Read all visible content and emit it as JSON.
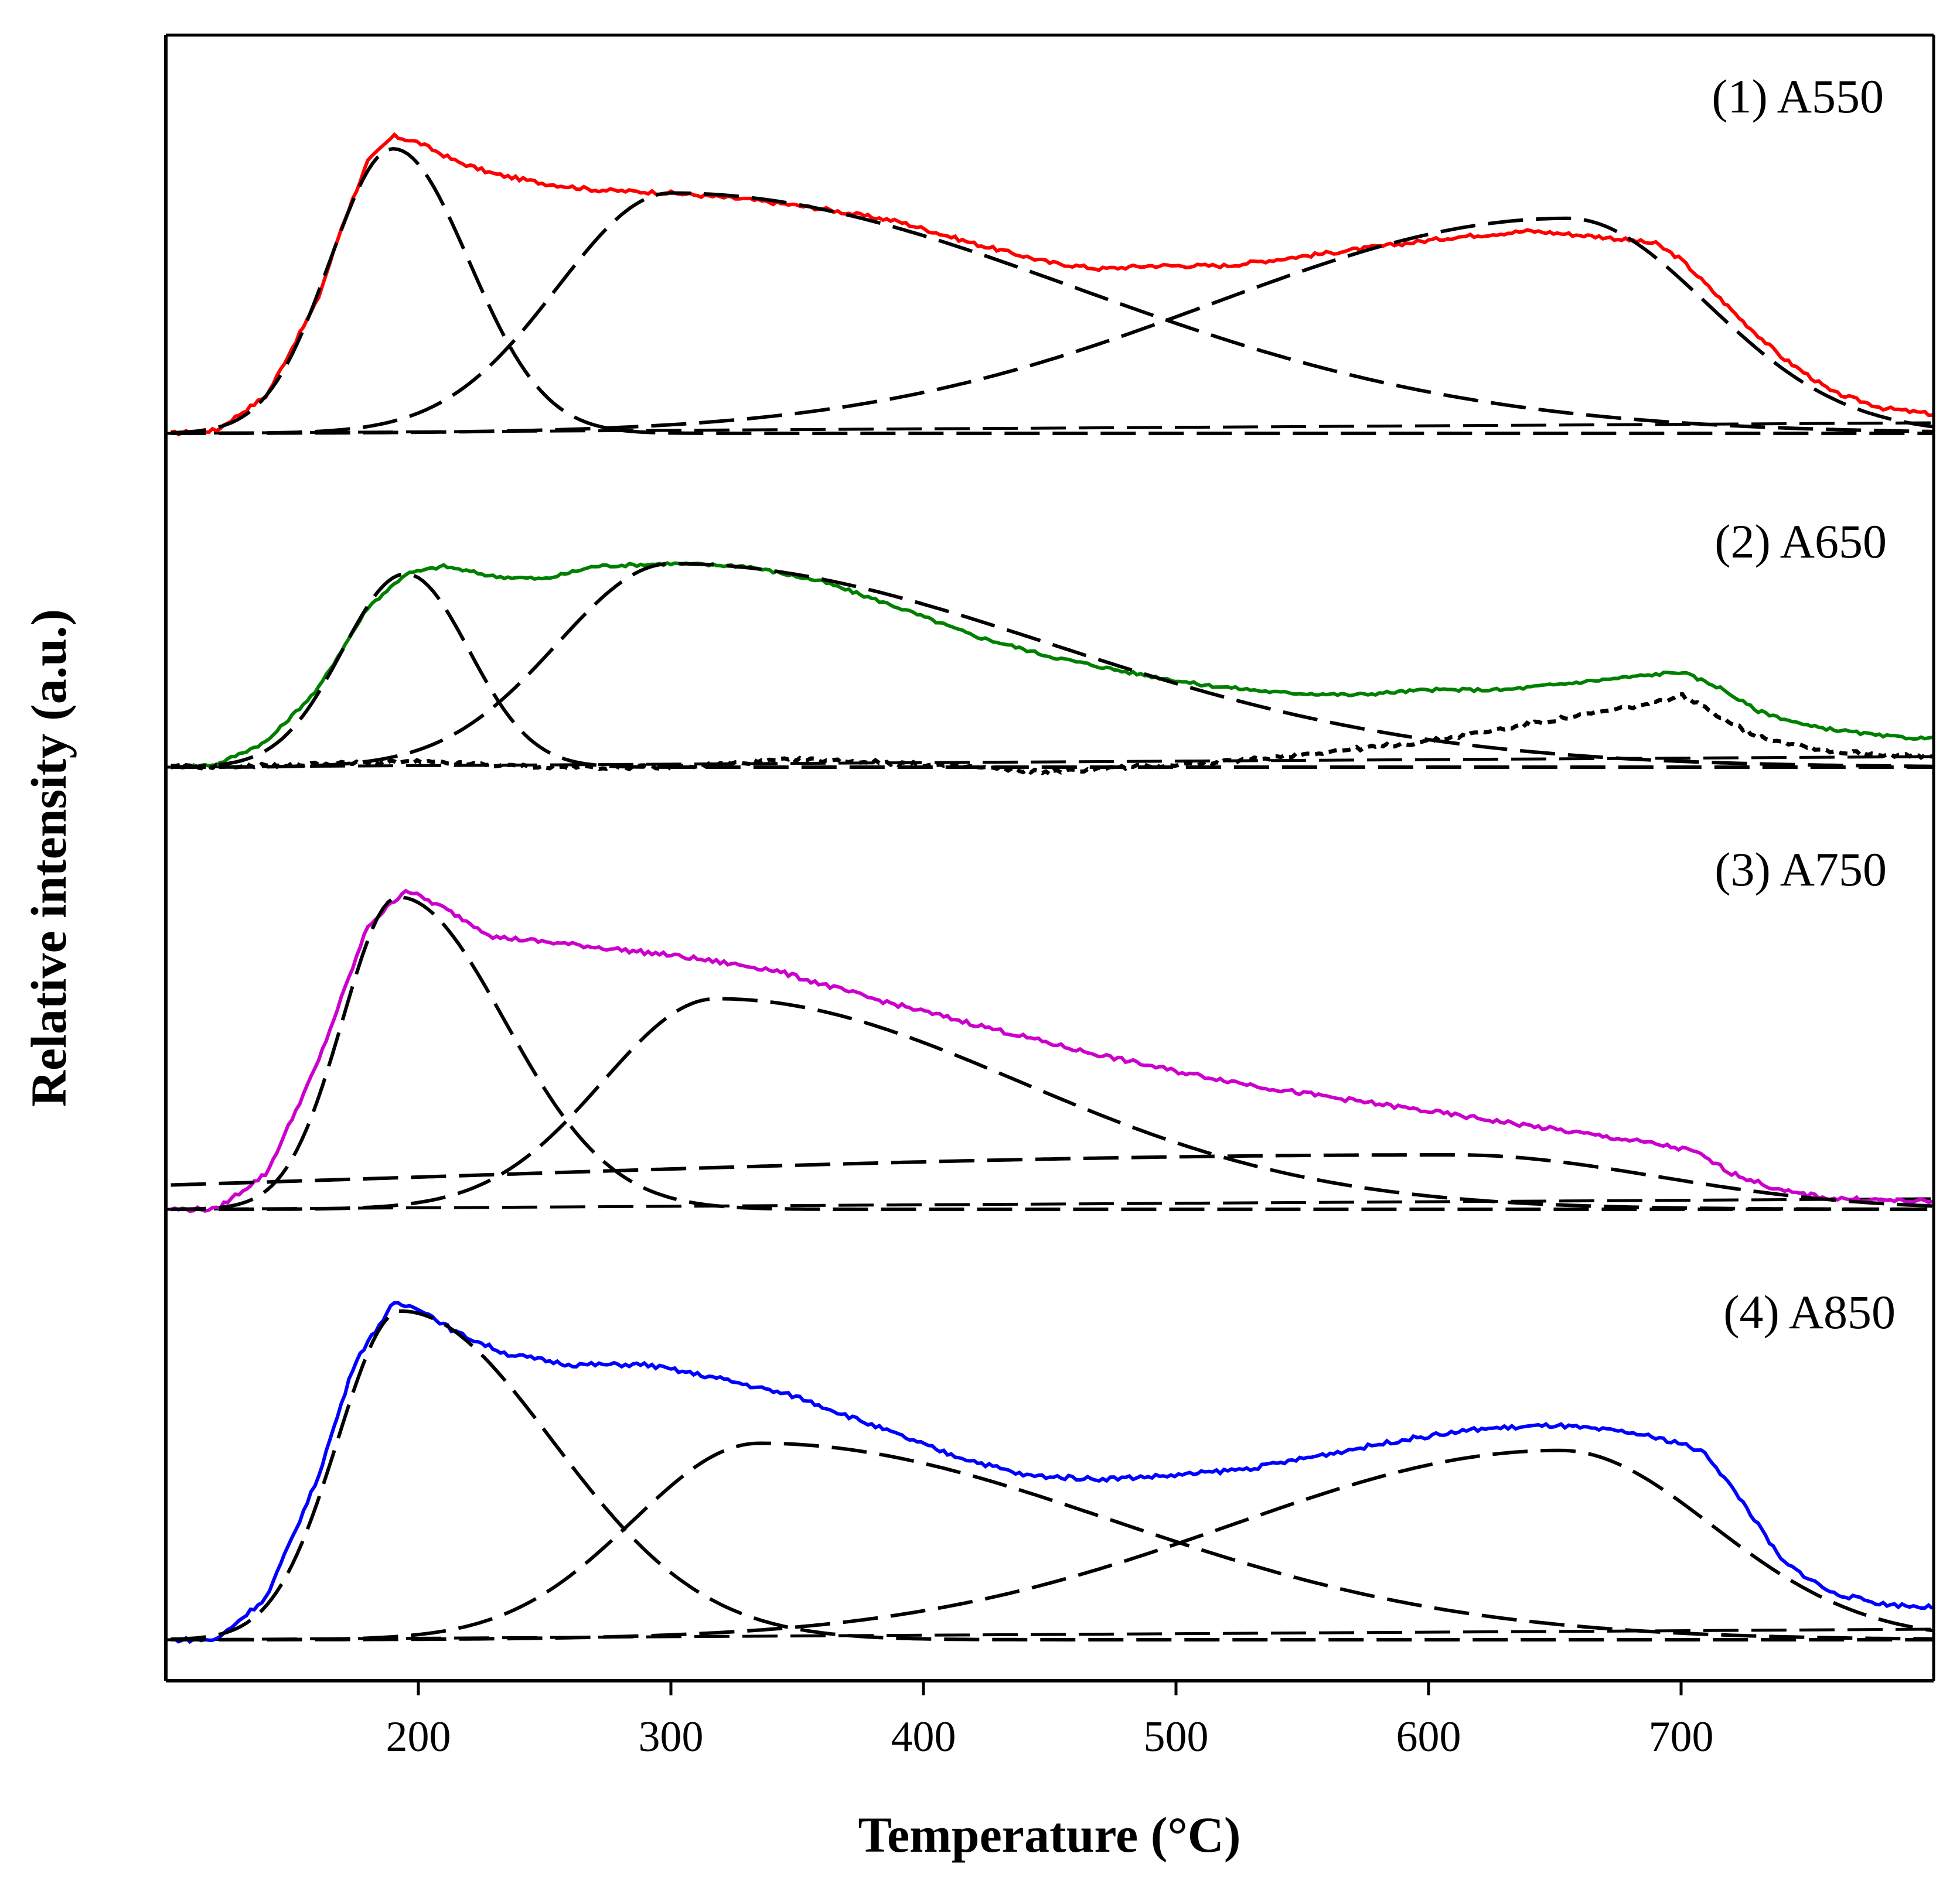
{
  "chart_data": {
    "type": "line",
    "title": "",
    "xlabel": "Temperature (°C)",
    "ylabel": "Relative intensity (a.u.)",
    "xlim": [
      100,
      800
    ],
    "ylim": [
      0,
      1
    ],
    "xticks": [
      200,
      300,
      400,
      500,
      600,
      700
    ],
    "grid": false,
    "panels": [
      {
        "label": "(1) A550",
        "color": "#ff0000",
        "measured": [
          [
            102,
            0.0
          ],
          [
            120,
            0.01
          ],
          [
            140,
            0.12
          ],
          [
            160,
            0.42
          ],
          [
            170,
            0.66
          ],
          [
            180,
            0.86
          ],
          [
            190,
            0.94
          ],
          [
            200,
            0.92
          ],
          [
            215,
            0.86
          ],
          [
            230,
            0.82
          ],
          [
            250,
            0.79
          ],
          [
            270,
            0.77
          ],
          [
            300,
            0.76
          ],
          [
            330,
            0.74
          ],
          [
            360,
            0.71
          ],
          [
            390,
            0.67
          ],
          [
            420,
            0.6
          ],
          [
            450,
            0.54
          ],
          [
            470,
            0.52
          ],
          [
            490,
            0.53
          ],
          [
            520,
            0.53
          ],
          [
            550,
            0.56
          ],
          [
            580,
            0.59
          ],
          [
            610,
            0.62
          ],
          [
            640,
            0.64
          ],
          [
            670,
            0.62
          ],
          [
            690,
            0.6
          ],
          [
            700,
            0.55
          ],
          [
            710,
            0.47
          ],
          [
            725,
            0.35
          ],
          [
            740,
            0.24
          ],
          [
            760,
            0.13
          ],
          [
            780,
            0.08
          ],
          [
            800,
            0.06
          ]
        ],
        "components": [
          {
            "center": 190,
            "amplitude": 0.9,
            "width_left": 25,
            "width_right": 30,
            "baseline": 0.0,
            "tail_left": 0,
            "tail_right": 0
          },
          {
            "center": 300,
            "amplitude": 0.76,
            "width_left": 45,
            "width_right": 160,
            "baseline": 0.0,
            "tail_left": 0,
            "tail_right": 0
          },
          {
            "center": 655,
            "amplitude": 0.68,
            "width_left": 140,
            "width_right": 55,
            "baseline": 0.0,
            "tail_left": 0,
            "tail_right": 0
          }
        ]
      },
      {
        "label": "(2) A650",
        "color": "#008000",
        "measured": [
          [
            102,
            0.0
          ],
          [
            120,
            0.01
          ],
          [
            140,
            0.1
          ],
          [
            160,
            0.3
          ],
          [
            180,
            0.62
          ],
          [
            195,
            0.75
          ],
          [
            210,
            0.78
          ],
          [
            230,
            0.74
          ],
          [
            250,
            0.73
          ],
          [
            270,
            0.78
          ],
          [
            300,
            0.79
          ],
          [
            330,
            0.78
          ],
          [
            360,
            0.72
          ],
          [
            390,
            0.62
          ],
          [
            420,
            0.51
          ],
          [
            450,
            0.43
          ],
          [
            480,
            0.37
          ],
          [
            510,
            0.32
          ],
          [
            540,
            0.29
          ],
          [
            570,
            0.28
          ],
          [
            600,
            0.3
          ],
          [
            630,
            0.3
          ],
          [
            660,
            0.33
          ],
          [
            690,
            0.36
          ],
          [
            700,
            0.37
          ],
          [
            715,
            0.31
          ],
          [
            730,
            0.22
          ],
          [
            750,
            0.16
          ],
          [
            780,
            0.12
          ],
          [
            800,
            0.11
          ]
        ],
        "components": [
          {
            "center": 195,
            "amplitude": 0.75,
            "width_left": 25,
            "width_right": 25,
            "baseline": 0.0,
            "tail_left": 0,
            "tail_right": 0
          },
          {
            "center": 300,
            "amplitude": 0.79,
            "width_left": 45,
            "width_right": 150,
            "baseline": 0.0,
            "tail_left": 0,
            "tail_right": 0
          }
        ],
        "difference": [
          [
            102,
            0.0
          ],
          [
            150,
            0.01
          ],
          [
            200,
            0.02
          ],
          [
            250,
            0.0
          ],
          [
            300,
            0.0
          ],
          [
            350,
            0.03
          ],
          [
            380,
            0.02
          ],
          [
            420,
            0.0
          ],
          [
            450,
            -0.02
          ],
          [
            480,
            0.0
          ],
          [
            520,
            0.02
          ],
          [
            560,
            0.06
          ],
          [
            600,
            0.1
          ],
          [
            630,
            0.15
          ],
          [
            660,
            0.2
          ],
          [
            690,
            0.25
          ],
          [
            700,
            0.28
          ],
          [
            715,
            0.2
          ],
          [
            730,
            0.12
          ],
          [
            760,
            0.06
          ],
          [
            800,
            0.04
          ]
        ]
      },
      {
        "label": "(3) A750",
        "color": "#cc00cc",
        "measured": [
          [
            102,
            0.0
          ],
          [
            120,
            0.0
          ],
          [
            140,
            0.1
          ],
          [
            160,
            0.4
          ],
          [
            180,
            0.78
          ],
          [
            195,
            0.88
          ],
          [
            210,
            0.83
          ],
          [
            230,
            0.75
          ],
          [
            260,
            0.73
          ],
          [
            300,
            0.7
          ],
          [
            340,
            0.66
          ],
          [
            380,
            0.58
          ],
          [
            420,
            0.51
          ],
          [
            460,
            0.44
          ],
          [
            500,
            0.38
          ],
          [
            540,
            0.33
          ],
          [
            580,
            0.29
          ],
          [
            620,
            0.25
          ],
          [
            660,
            0.21
          ],
          [
            690,
            0.18
          ],
          [
            705,
            0.16
          ],
          [
            720,
            0.1
          ],
          [
            740,
            0.05
          ],
          [
            760,
            0.03
          ],
          [
            800,
            0.02
          ]
        ],
        "components": [
          {
            "center": 192,
            "amplitude": 0.86,
            "width_left": 22,
            "width_right": 42,
            "baseline": 0.0,
            "tail_left": 0,
            "tail_right": 0
          },
          {
            "center": 318,
            "amplitude": 0.58,
            "width_left": 45,
            "width_right": 120,
            "baseline": 0.0,
            "tail_left": 0,
            "tail_right": 0
          },
          {
            "center": 610,
            "amplitude": 0.15,
            "width_left": 400,
            "width_right": 80,
            "baseline": 0.0,
            "tail_left": 0,
            "tail_right": 0
          }
        ]
      },
      {
        "label": "(4) A850",
        "color": "#0000ff",
        "measured": [
          [
            102,
            0.0
          ],
          [
            120,
            0.0
          ],
          [
            140,
            0.12
          ],
          [
            160,
            0.45
          ],
          [
            175,
            0.78
          ],
          [
            190,
            0.94
          ],
          [
            200,
            0.93
          ],
          [
            215,
            0.86
          ],
          [
            235,
            0.8
          ],
          [
            260,
            0.77
          ],
          [
            290,
            0.77
          ],
          [
            320,
            0.73
          ],
          [
            350,
            0.68
          ],
          [
            380,
            0.6
          ],
          [
            410,
            0.52
          ],
          [
            440,
            0.46
          ],
          [
            470,
            0.45
          ],
          [
            500,
            0.46
          ],
          [
            530,
            0.48
          ],
          [
            560,
            0.52
          ],
          [
            590,
            0.56
          ],
          [
            620,
            0.59
          ],
          [
            650,
            0.6
          ],
          [
            680,
            0.58
          ],
          [
            700,
            0.55
          ],
          [
            710,
            0.52
          ],
          [
            725,
            0.38
          ],
          [
            740,
            0.22
          ],
          [
            760,
            0.13
          ],
          [
            780,
            0.1
          ],
          [
            800,
            0.09
          ]
        ],
        "components": [
          {
            "center": 193,
            "amplitude": 0.92,
            "width_left": 25,
            "width_right": 60,
            "baseline": 0.0,
            "tail_left": 0,
            "tail_right": 0
          },
          {
            "center": 335,
            "amplitude": 0.55,
            "width_left": 50,
            "width_right": 140,
            "baseline": 0.0,
            "tail_left": 0,
            "tail_right": 0
          },
          {
            "center": 652,
            "amplitude": 0.53,
            "width_left": 130,
            "width_right": 60,
            "baseline": 0.0,
            "tail_left": 0,
            "tail_right": 0
          }
        ]
      }
    ]
  }
}
